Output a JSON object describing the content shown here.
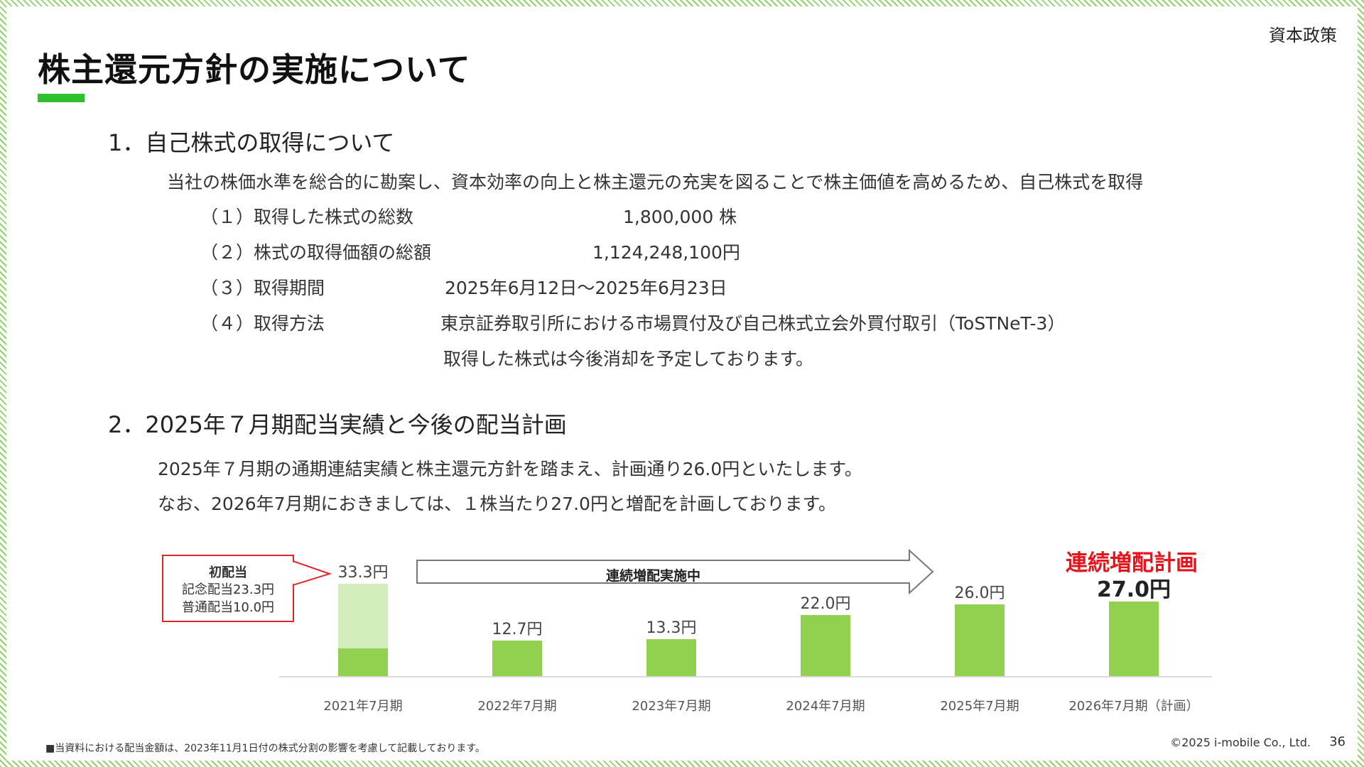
{
  "header": {
    "section": "資本政策",
    "title": "株主還元方針の実施について"
  },
  "section1": {
    "heading": "1．自己株式の取得について",
    "intro": "当社の株価水準を総合的に勘案し、資本効率の向上と株主還元の充実を図ることで株主価値を高めるため、自己株式を取得",
    "items": [
      {
        "label": "（１）取得した株式の総数",
        "value": "1,800,000 株"
      },
      {
        "label": "（２）株式の取得価額の総額",
        "value": "1,124,248,100円"
      },
      {
        "label": "（３）取得期間",
        "value": "2025年6月12日～2025年6月23日"
      },
      {
        "label": "（４）取得方法",
        "value": "東京証券取引所における市場買付及び自己株式立会外買付取引（ToSTNeT-3）"
      }
    ],
    "note": "取得した株式は今後消却を予定しております。"
  },
  "section2": {
    "heading": "2．2025年７月期配当実績と今後の配当計画",
    "line1": "2025年７月期の通期連結実績と株主還元方針を踏まえ、計画通り26.0円といたします。",
    "line2": "なお、2026年7月期におきましては、１株当たり27.0円と増配を計画しております。"
  },
  "callout": {
    "title": "初配当",
    "line1": "記念配当23.3円",
    "line2": "普通配当10.0円"
  },
  "arrow_label": "連続増配実施中",
  "plan_label": "連続増配計画",
  "chart_data": {
    "type": "bar",
    "categories": [
      "2021年7月期",
      "2022年7月期",
      "2023年7月期",
      "2024年7月期",
      "2025年7月期",
      "2026年7月期（計画）"
    ],
    "values": [
      33.3,
      12.7,
      13.3,
      22.0,
      26.0,
      27.0
    ],
    "value_labels": [
      "33.3円",
      "12.7円",
      "13.3円",
      "22.0円",
      "26.0円",
      "27.0円"
    ],
    "stack_2021": {
      "普通配当": 10.0,
      "記念配当": 23.3
    },
    "colors": {
      "bar": "#92d050",
      "commemorative": "#d4edbd",
      "plan_text": "#e8141b"
    },
    "ylim": [
      0,
      35
    ]
  },
  "footer": {
    "footnote": "■当資料における配当金額は、2023年11月1日付の株式分割の影響を考慮して記載しております。",
    "copyright": "©2025 i-mobile Co., Ltd.",
    "page": "36"
  }
}
